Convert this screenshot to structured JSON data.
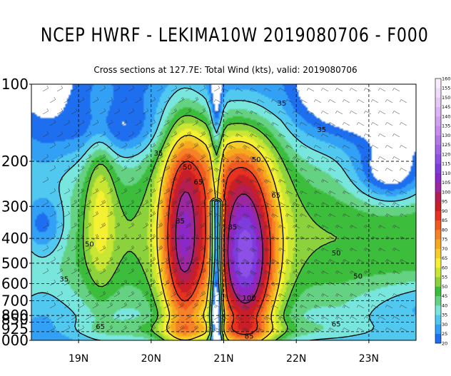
{
  "title": "NCEP HWRF - LEKIMA10W 2019080706 - F000",
  "subtitle": "Cross sections at 127.7E: Total Wind (kts), valid: 2019080706",
  "chart_data": {
    "type": "heatmap",
    "xlim": [
      18.35,
      23.65
    ],
    "x_ticks": [
      {
        "value": 19,
        "label": "19N"
      },
      {
        "value": 20,
        "label": "20N"
      },
      {
        "value": 21,
        "label": "21N"
      },
      {
        "value": 22,
        "label": "22N"
      },
      {
        "value": 23,
        "label": "23N"
      }
    ],
    "y_scale": "log",
    "ylim": [
      1000,
      100
    ],
    "y_ticks": [
      {
        "value": 100,
        "label": "100"
      },
      {
        "value": 200,
        "label": "200"
      },
      {
        "value": 300,
        "label": "300"
      },
      {
        "value": 400,
        "label": "400"
      },
      {
        "value": 500,
        "label": "500"
      },
      {
        "value": 600,
        "label": "600"
      },
      {
        "value": 700,
        "label": "700"
      },
      {
        "value": 800,
        "label": "800"
      },
      {
        "value": 850,
        "label": "850"
      },
      {
        "value": 925,
        "label": "925"
      },
      {
        "value": 1000,
        "label": "1000"
      }
    ],
    "grid": true,
    "colorbar": {
      "levels": [
        20,
        25,
        30,
        35,
        40,
        45,
        50,
        55,
        60,
        65,
        70,
        75,
        80,
        85,
        90,
        95,
        100,
        105,
        110,
        115,
        120,
        125,
        130,
        135,
        140,
        145,
        150,
        155,
        160
      ],
      "colors": [
        "#1e6ef0",
        "#32a0f5",
        "#50c8f0",
        "#78e6dc",
        "#64d282",
        "#3cbe3c",
        "#8cd23c",
        "#c8e632",
        "#f5f032",
        "#f5cd28",
        "#f5aa1e",
        "#f58228",
        "#f05a1e",
        "#e6321e",
        "#c81e28",
        "#b41e50",
        "#9b28a0",
        "#8c28c8",
        "#7d3cdc",
        "#8c50e6",
        "#a064e6",
        "#b478e6",
        "#c88cee",
        "#d2a0f0",
        "#dcb4f5",
        "#e6c8f5",
        "#f0dcfa",
        "#f8ecfc"
      ]
    },
    "contour_levels": [
      35,
      50,
      65,
      85,
      100
    ],
    "contour_labels": [
      {
        "text": "35",
        "x": 20.1,
        "p": 185
      },
      {
        "text": "35",
        "x": 21.8,
        "p": 118
      },
      {
        "text": "35",
        "x": 22.35,
        "p": 150
      },
      {
        "text": "35",
        "x": 18.8,
        "p": 575
      },
      {
        "text": "50",
        "x": 20.5,
        "p": 210
      },
      {
        "text": "50",
        "x": 21.45,
        "p": 196
      },
      {
        "text": "50",
        "x": 19.15,
        "p": 420
      },
      {
        "text": "50",
        "x": 22.55,
        "p": 455
      },
      {
        "text": "50",
        "x": 22.85,
        "p": 560
      },
      {
        "text": "65",
        "x": 20.65,
        "p": 240
      },
      {
        "text": "65",
        "x": 21.72,
        "p": 270
      },
      {
        "text": "65",
        "x": 19.3,
        "p": 880
      },
      {
        "text": "65",
        "x": 22.55,
        "p": 860
      },
      {
        "text": "85",
        "x": 20.4,
        "p": 340
      },
      {
        "text": "85",
        "x": 21.12,
        "p": 360
      },
      {
        "text": "85",
        "x": 21.35,
        "p": 960
      },
      {
        "text": "100",
        "x": 21.35,
        "p": 680
      }
    ],
    "features": {
      "eye_latitude": 20.9,
      "south_eyewall_max": {
        "x": 20.5,
        "p": 450,
        "value": 90
      },
      "north_eyewall_max": {
        "x": 21.25,
        "p": 600,
        "value": 115
      },
      "cloud_free_area": "top-right"
    }
  }
}
